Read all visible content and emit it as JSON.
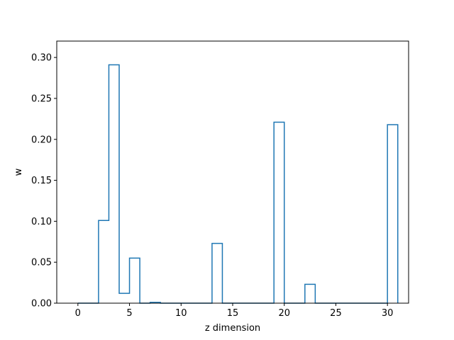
{
  "chart_data": {
    "type": "bar",
    "style": "step-outline",
    "xlabel": "z dimension",
    "ylabel": "w",
    "xlim": [
      -2.05,
      32.05
    ],
    "ylim": [
      0,
      0.32
    ],
    "x_ticks": [
      0,
      5,
      10,
      15,
      20,
      25,
      30
    ],
    "y_ticks": [
      0.0,
      0.05,
      0.1,
      0.15,
      0.2,
      0.25,
      0.3
    ],
    "y_tick_labels": [
      "0.00",
      "0.05",
      "0.10",
      "0.15",
      "0.20",
      "0.25",
      "0.30"
    ],
    "x": [
      0,
      1,
      2,
      3,
      4,
      5,
      6,
      7,
      8,
      9,
      10,
      11,
      12,
      13,
      14,
      15,
      16,
      17,
      18,
      19,
      20,
      21,
      22,
      23,
      24,
      25,
      26,
      27,
      28,
      29,
      30
    ],
    "values": [
      0,
      0,
      0.101,
      0.291,
      0.012,
      0.055,
      0,
      0.001,
      0,
      0,
      0,
      0,
      0,
      0.073,
      0,
      0,
      0,
      0,
      0,
      0.221,
      0,
      0,
      0.023,
      0,
      0,
      0,
      0,
      0,
      0,
      0,
      0.218
    ],
    "x_extent": [
      0,
      31
    ],
    "grid": false,
    "line_color": "#1f77b4"
  }
}
